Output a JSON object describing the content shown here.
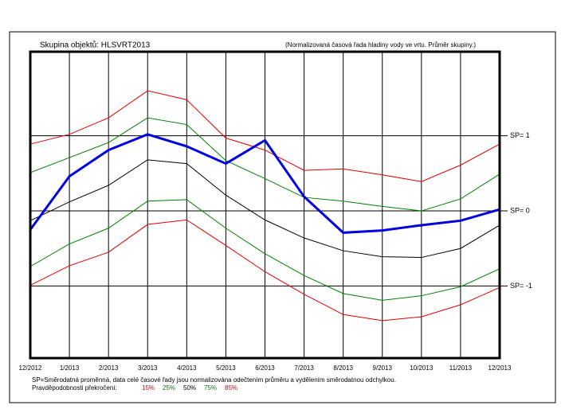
{
  "chart_data": {
    "type": "line",
    "title": "Skupina objektů: HLSVRT2013",
    "subtitle": "(Normalizovaná časová řada hladiny vody ve vrtu. Průměr skupiny.)",
    "note": "SP=Směrodatná proměnná, data celé časové řady jsou normalizována odečtením průměru a vydělením směrodatnou odchylkou.",
    "legend_title": "Pravděpodobnosti překročení:",
    "categories": [
      "12/2012",
      "1/2013",
      "2/2013",
      "3/2013",
      "4/2013",
      "5/2013",
      "6/2013",
      "7/2013",
      "8/2013",
      "9/2013",
      "10/2013",
      "11/2013",
      "12/2013"
    ],
    "ylim": [
      -1.96,
      2.12
    ],
    "yticks": [
      {
        "value": 1,
        "label": "SP= 1"
      },
      {
        "value": 0,
        "label": "SP= 0"
      },
      {
        "value": -1,
        "label": "SP= -1"
      }
    ],
    "grid": true,
    "series": [
      {
        "name": "15%",
        "color": "#e00000",
        "values": [
          0.89,
          1.02,
          1.24,
          1.6,
          1.48,
          0.97,
          0.81,
          0.54,
          0.56,
          0.48,
          0.39,
          0.61,
          0.89
        ]
      },
      {
        "name": "25%",
        "color": "#008000",
        "values": [
          0.51,
          0.71,
          0.91,
          1.24,
          1.15,
          0.67,
          0.43,
          0.18,
          0.13,
          0.06,
          0.0,
          0.16,
          0.49
        ]
      },
      {
        "name": "50%",
        "color": "#000000",
        "values": [
          -0.13,
          0.12,
          0.34,
          0.68,
          0.63,
          0.21,
          -0.12,
          -0.36,
          -0.53,
          -0.61,
          -0.62,
          -0.5,
          -0.19
        ]
      },
      {
        "name": "75%",
        "color": "#008000",
        "values": [
          -0.74,
          -0.44,
          -0.23,
          0.13,
          0.15,
          -0.23,
          -0.57,
          -0.86,
          -1.1,
          -1.19,
          -1.13,
          -1.01,
          -0.77
        ]
      },
      {
        "name": "85%",
        "color": "#e00000",
        "values": [
          -0.99,
          -0.73,
          -0.55,
          -0.18,
          -0.12,
          -0.46,
          -0.81,
          -1.11,
          -1.38,
          -1.46,
          -1.41,
          -1.25,
          -1.02
        ]
      },
      {
        "color": "#0000e0",
        "width": 3,
        "values": [
          -0.25,
          0.46,
          0.81,
          1.02,
          0.86,
          0.63,
          0.94,
          0.19,
          -0.29,
          -0.26,
          -0.19,
          -0.13,
          0.02
        ]
      }
    ]
  }
}
